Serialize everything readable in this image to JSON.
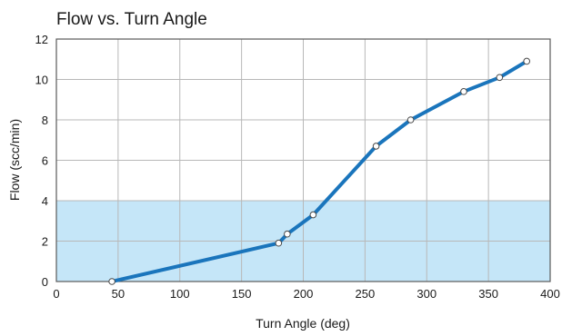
{
  "chart_data": {
    "type": "line",
    "title": "Flow vs. Turn Angle",
    "xlabel": "Turn Angle (deg)",
    "ylabel": "Flow (scc/min)",
    "xlim": [
      0,
      400
    ],
    "ylim": [
      0,
      12
    ],
    "xticks": [
      0,
      50,
      100,
      150,
      200,
      250,
      300,
      350,
      400
    ],
    "yticks": [
      0,
      2,
      4,
      6,
      8,
      10,
      12
    ],
    "grid": true,
    "shaded_band": {
      "y_from": 0,
      "y_to": 4,
      "color": "#c5e6f8"
    },
    "series": [
      {
        "color": "#1a75bc",
        "x": [
          45,
          180,
          187,
          208,
          259,
          287,
          330,
          359,
          381
        ],
        "y": [
          0,
          1.9,
          2.35,
          3.3,
          6.7,
          8.0,
          9.4,
          10.1,
          10.9
        ]
      }
    ]
  }
}
